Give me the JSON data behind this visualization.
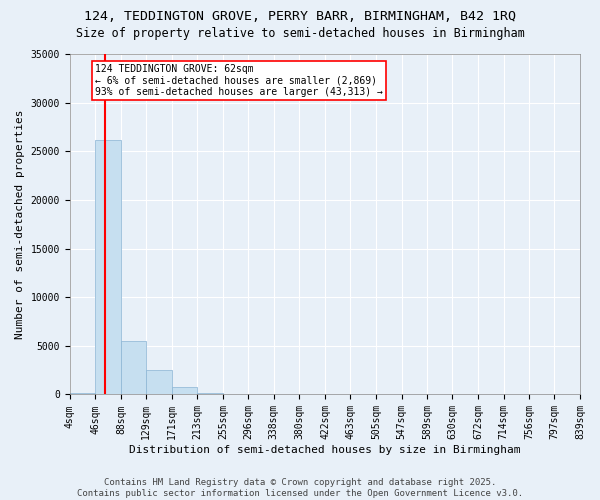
{
  "title_line1": "124, TEDDINGTON GROVE, PERRY BARR, BIRMINGHAM, B42 1RQ",
  "title_line2": "Size of property relative to semi-detached houses in Birmingham",
  "xlabel": "Distribution of semi-detached houses by size in Birmingham",
  "ylabel": "Number of semi-detached properties",
  "property_size": 62,
  "annotation_text": "124 TEDDINGTON GROVE: 62sqm\n← 6% of semi-detached houses are smaller (2,869)\n93% of semi-detached houses are larger (43,313) →",
  "bins": [
    4,
    46,
    88,
    129,
    171,
    213,
    255,
    296,
    338,
    380,
    422,
    463,
    505,
    547,
    589,
    630,
    672,
    714,
    756,
    797,
    839
  ],
  "bin_labels": [
    "4sqm",
    "46sqm",
    "88sqm",
    "129sqm",
    "171sqm",
    "213sqm",
    "255sqm",
    "296sqm",
    "338sqm",
    "380sqm",
    "422sqm",
    "463sqm",
    "505sqm",
    "547sqm",
    "589sqm",
    "630sqm",
    "672sqm",
    "714sqm",
    "756sqm",
    "797sqm",
    "839sqm"
  ],
  "counts": [
    160,
    26200,
    5500,
    2500,
    800,
    200,
    50,
    20,
    10,
    5,
    5,
    3,
    2,
    1,
    1,
    1,
    1,
    1,
    0,
    0
  ],
  "bar_color": "#c6dff0",
  "bar_edgecolor": "#8ab4d4",
  "vline_color": "red",
  "ylim": [
    0,
    35000
  ],
  "yticks": [
    0,
    5000,
    10000,
    15000,
    20000,
    25000,
    30000,
    35000
  ],
  "background_color": "#e8f0f8",
  "plot_bg_color": "#e8f0f8",
  "grid_color": "#ffffff",
  "footer_line1": "Contains HM Land Registry data © Crown copyright and database right 2025.",
  "footer_line2": "Contains public sector information licensed under the Open Government Licence v3.0.",
  "title_fontsize": 9.5,
  "subtitle_fontsize": 8.5,
  "axis_label_fontsize": 8,
  "tick_fontsize": 7,
  "annotation_fontsize": 7,
  "footer_fontsize": 6.5
}
